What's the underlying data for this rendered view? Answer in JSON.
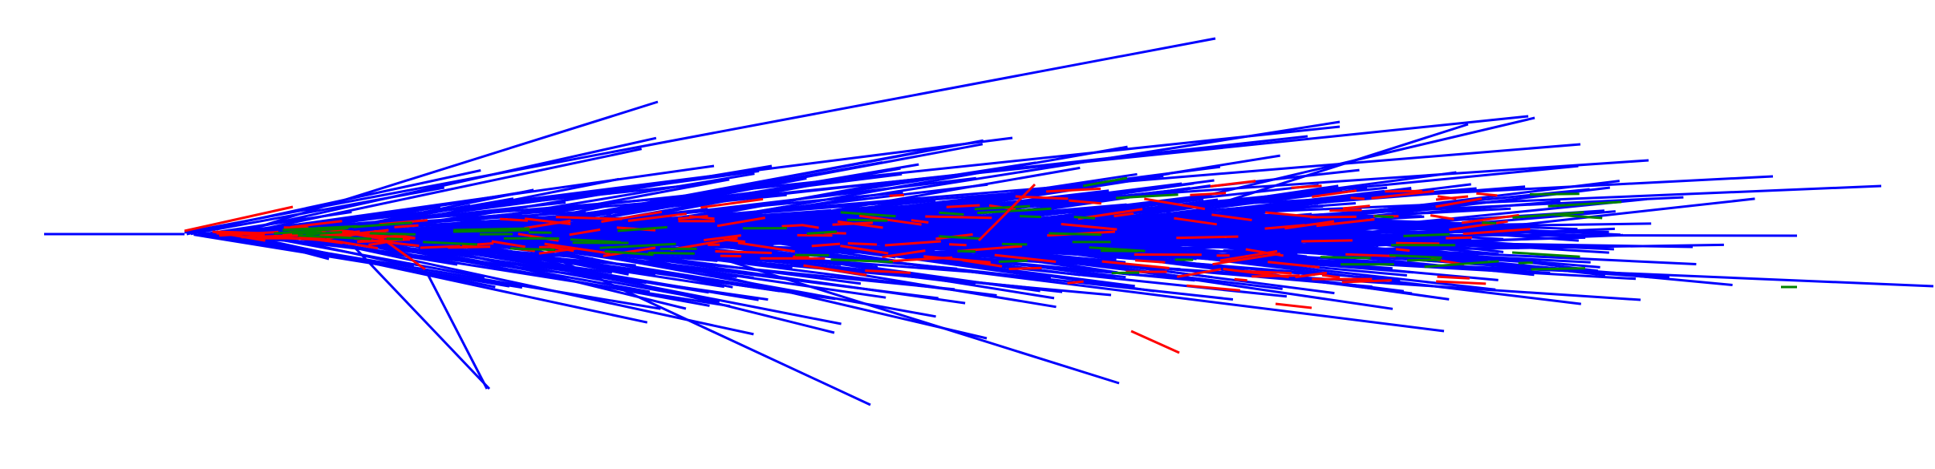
{
  "figure": {
    "type": "diagram",
    "description_kind": "radial line bundle (fan of segments emanating from a left-side origin)",
    "background_color": "#ffffff"
  },
  "colors": {
    "primary": "#0000ff",
    "highlight": "#ff0000",
    "accent": "#008000"
  },
  "icons": {
    "line-bundle": "line-segments"
  }
}
